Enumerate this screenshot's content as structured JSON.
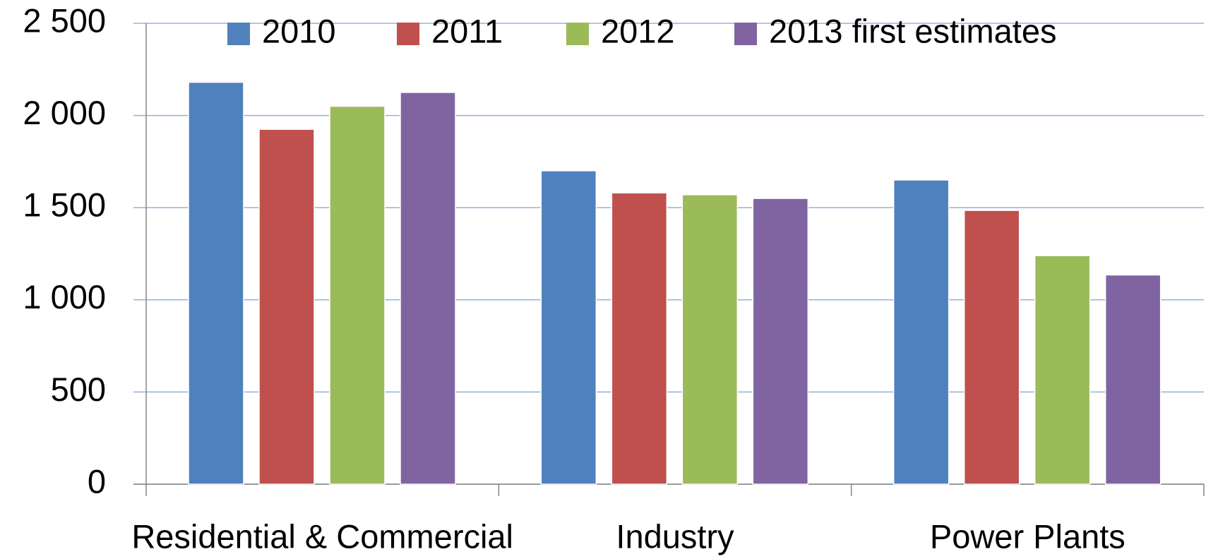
{
  "chart_data": {
    "type": "bar",
    "categories": [
      "Residential & Commercial",
      "Industry",
      "Power Plants"
    ],
    "series": [
      {
        "name": "2010",
        "color": "#4f81bd",
        "values": [
          2180,
          1700,
          1650
        ]
      },
      {
        "name": "2011",
        "color": "#c0504d",
        "values": [
          1925,
          1580,
          1485
        ]
      },
      {
        "name": "2012",
        "color": "#9bbb59",
        "values": [
          2050,
          1570,
          1240
        ]
      },
      {
        "name": "2013 first estimates",
        "color": "#8064a2",
        "values": [
          2125,
          1550,
          1135
        ]
      }
    ],
    "ylim": [
      0,
      2500
    ],
    "yticks": [
      0,
      500,
      {
        "value": 1000,
        "label": "1 000"
      },
      {
        "value": 1500,
        "label": "1 500"
      },
      {
        "value": 2000,
        "label": "2 000"
      },
      {
        "value": 2500,
        "label": "2 500"
      }
    ],
    "grid": true,
    "legend": "top"
  }
}
